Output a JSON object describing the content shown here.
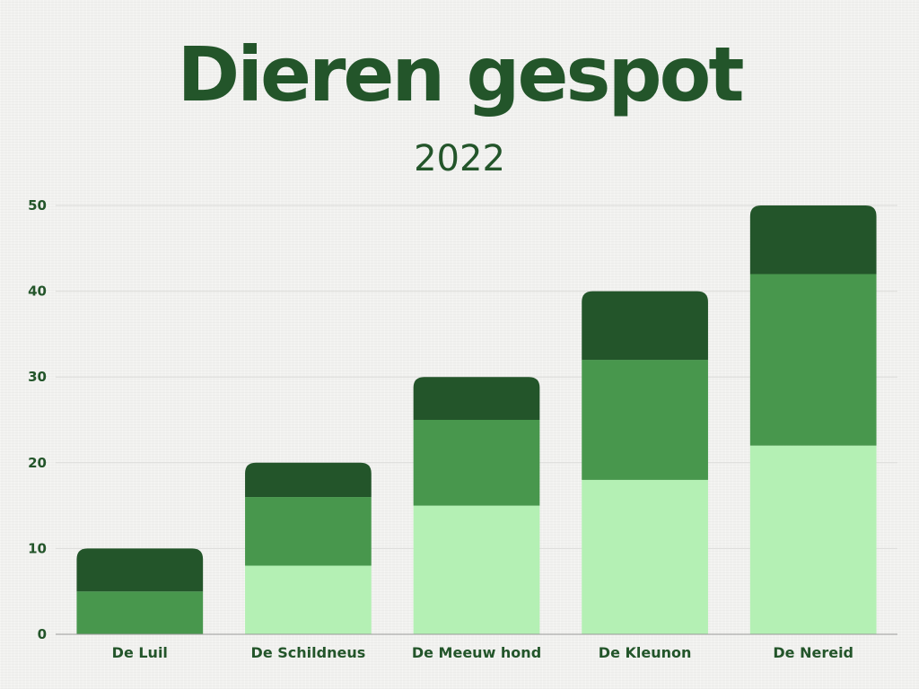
{
  "colors": {
    "dark": "#23552a",
    "mid": "#48974d",
    "light": "#b4f0b4",
    "grid": "#dcdcda",
    "axis": "#9a9a9a",
    "text": "#23552a"
  },
  "chart_data": {
    "type": "bar",
    "stacked": true,
    "title": "Dieren gespot",
    "subtitle": "2022",
    "xlabel": "",
    "ylabel": "",
    "ylim": [
      0,
      50
    ],
    "yticks": [
      0,
      10,
      20,
      30,
      40,
      50
    ],
    "grid": true,
    "legend": "none",
    "categories": [
      "De Luil",
      "De Schildneus",
      "De Meeuw hond",
      "De Kleunon",
      "De Nereid"
    ],
    "series": [
      {
        "color": "#b4f0b4",
        "values": [
          0,
          8,
          15,
          18,
          22
        ]
      },
      {
        "color": "#48974d",
        "values": [
          5,
          8,
          10,
          14,
          20
        ]
      },
      {
        "color": "#23552a",
        "values": [
          5,
          4,
          5,
          8,
          8
        ]
      }
    ]
  }
}
